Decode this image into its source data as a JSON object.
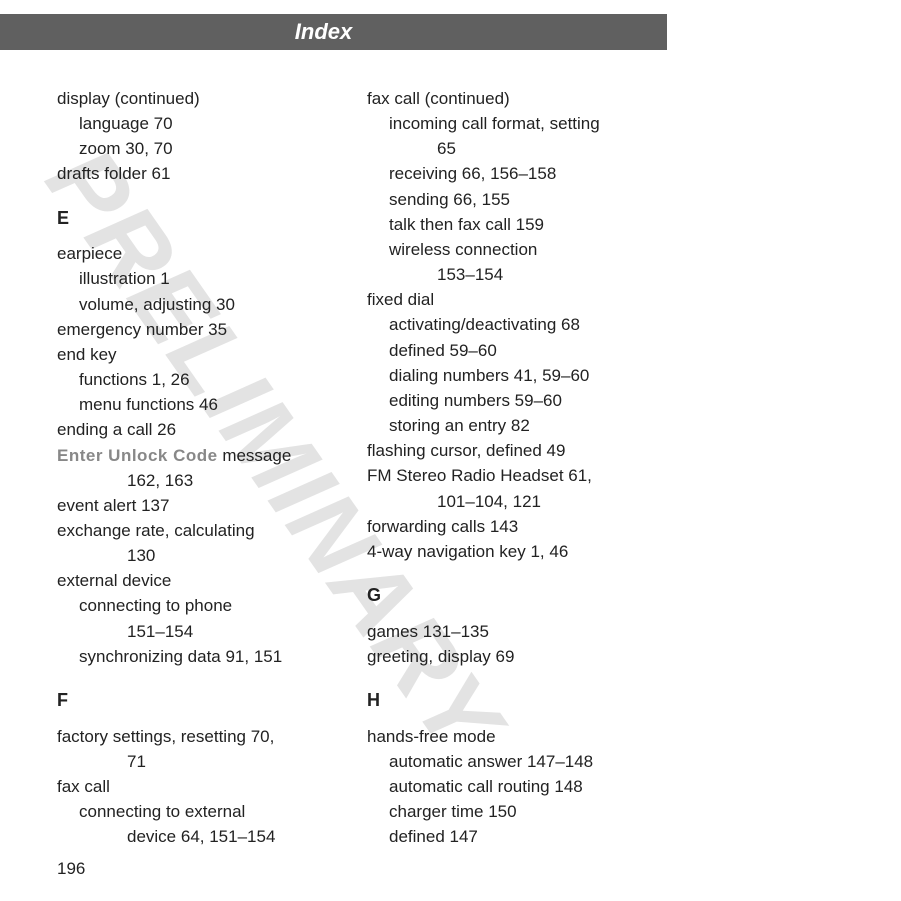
{
  "header": {
    "title": "Index"
  },
  "watermark": "PRELIMINARY",
  "pageNumber": "196",
  "col1": [
    {
      "lvl": 0,
      "text": "display (continued)"
    },
    {
      "lvl": 1,
      "text": "language  70"
    },
    {
      "lvl": 1,
      "text": "zoom  30, 70"
    },
    {
      "lvl": 0,
      "text": "drafts folder  61"
    },
    {
      "lvl": 0,
      "letter": true,
      "text": "E"
    },
    {
      "lvl": 0,
      "text": "earpiece"
    },
    {
      "lvl": 1,
      "text": "illustration  1"
    },
    {
      "lvl": 1,
      "text": "volume, adjusting  30"
    },
    {
      "lvl": 0,
      "text": "emergency number  35"
    },
    {
      "lvl": 0,
      "text": "end key"
    },
    {
      "lvl": 1,
      "text": "functions  1, 26"
    },
    {
      "lvl": 1,
      "text": "menu functions  46"
    },
    {
      "lvl": 0,
      "text": "ending a call  26"
    },
    {
      "lvl": 0,
      "code": "Enter Unlock Code",
      "suffix": " message"
    },
    {
      "lvl": 2,
      "text": "162, 163"
    },
    {
      "lvl": 0,
      "text": "event alert  137"
    },
    {
      "lvl": 0,
      "text": "exchange rate, calculating"
    },
    {
      "lvl": 2,
      "text": "130"
    },
    {
      "lvl": 0,
      "text": "external device"
    },
    {
      "lvl": 1,
      "text": "connecting to phone"
    },
    {
      "lvl": 2,
      "text": "151–154"
    },
    {
      "lvl": 1,
      "text": "synchronizing data  91, 151"
    },
    {
      "lvl": 0,
      "letter": true,
      "text": "F"
    },
    {
      "lvl": 0,
      "text": "factory settings, resetting  70,"
    },
    {
      "lvl": 2,
      "text": "71"
    },
    {
      "lvl": 0,
      "text": "fax call"
    },
    {
      "lvl": 1,
      "text": "connecting to external"
    },
    {
      "lvl": 2,
      "text": "device  64, 151–154"
    }
  ],
  "col2": [
    {
      "lvl": 0,
      "text": "fax call (continued)"
    },
    {
      "lvl": 1,
      "text": "incoming call format, setting"
    },
    {
      "lvl": 2,
      "text": "65"
    },
    {
      "lvl": 1,
      "text": "receiving  66, 156–158"
    },
    {
      "lvl": 1,
      "text": "sending  66, 155"
    },
    {
      "lvl": 1,
      "text": "talk then fax call  159"
    },
    {
      "lvl": 1,
      "text": "wireless connection"
    },
    {
      "lvl": 2,
      "text": "153–154"
    },
    {
      "lvl": 0,
      "text": "fixed dial"
    },
    {
      "lvl": 1,
      "text": "activating/deactivating  68"
    },
    {
      "lvl": 1,
      "text": "defined  59–60"
    },
    {
      "lvl": 1,
      "text": "dialing numbers  41, 59–60"
    },
    {
      "lvl": 1,
      "text": "editing numbers  59–60"
    },
    {
      "lvl": 1,
      "text": "storing an entry  82"
    },
    {
      "lvl": 0,
      "text": "flashing cursor, defined  49"
    },
    {
      "lvl": 0,
      "text": "FM Stereo Radio Headset  61,"
    },
    {
      "lvl": 2,
      "text": "101–104, 121"
    },
    {
      "lvl": 0,
      "text": "forwarding calls  143"
    },
    {
      "lvl": 0,
      "text": "4-way navigation key  1, 46"
    },
    {
      "lvl": 0,
      "letter": true,
      "text": "G"
    },
    {
      "lvl": 0,
      "text": "games  131–135"
    },
    {
      "lvl": 0,
      "text": "greeting, display  69"
    },
    {
      "lvl": 0,
      "letter": true,
      "text": "H"
    },
    {
      "lvl": 0,
      "text": "hands-free mode"
    },
    {
      "lvl": 1,
      "text": "automatic answer  147–148"
    },
    {
      "lvl": 1,
      "text": "automatic call routing  148"
    },
    {
      "lvl": 1,
      "text": "charger time  150"
    },
    {
      "lvl": 1,
      "text": "defined  147"
    }
  ]
}
